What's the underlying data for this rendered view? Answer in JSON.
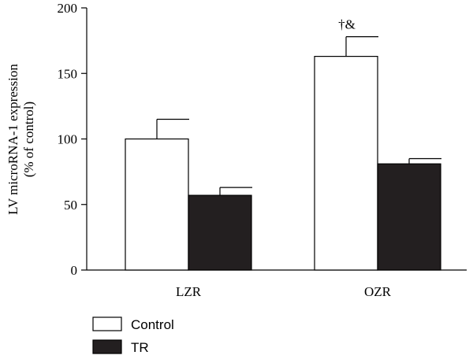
{
  "chart_data": {
    "type": "bar",
    "title": "",
    "xlabel": "",
    "ylabel": [
      "LV microRNA-1 expression",
      "(% of control)"
    ],
    "ylim": [
      0,
      200
    ],
    "yticks": [
      0,
      50,
      100,
      150,
      200
    ],
    "categories": [
      "LZR",
      "OZR"
    ],
    "series": [
      {
        "name": "Control",
        "values": [
          100,
          163
        ],
        "errors": [
          15,
          15
        ],
        "color": "#ffffff"
      },
      {
        "name": "TR",
        "values": [
          57,
          81
        ],
        "errors": [
          6,
          4
        ],
        "color": "#231f20"
      }
    ],
    "annotations": [
      {
        "text": "†&",
        "category": "OZR",
        "series": "Control"
      }
    ],
    "legend_placement": "bottom-left",
    "grid": false
  }
}
